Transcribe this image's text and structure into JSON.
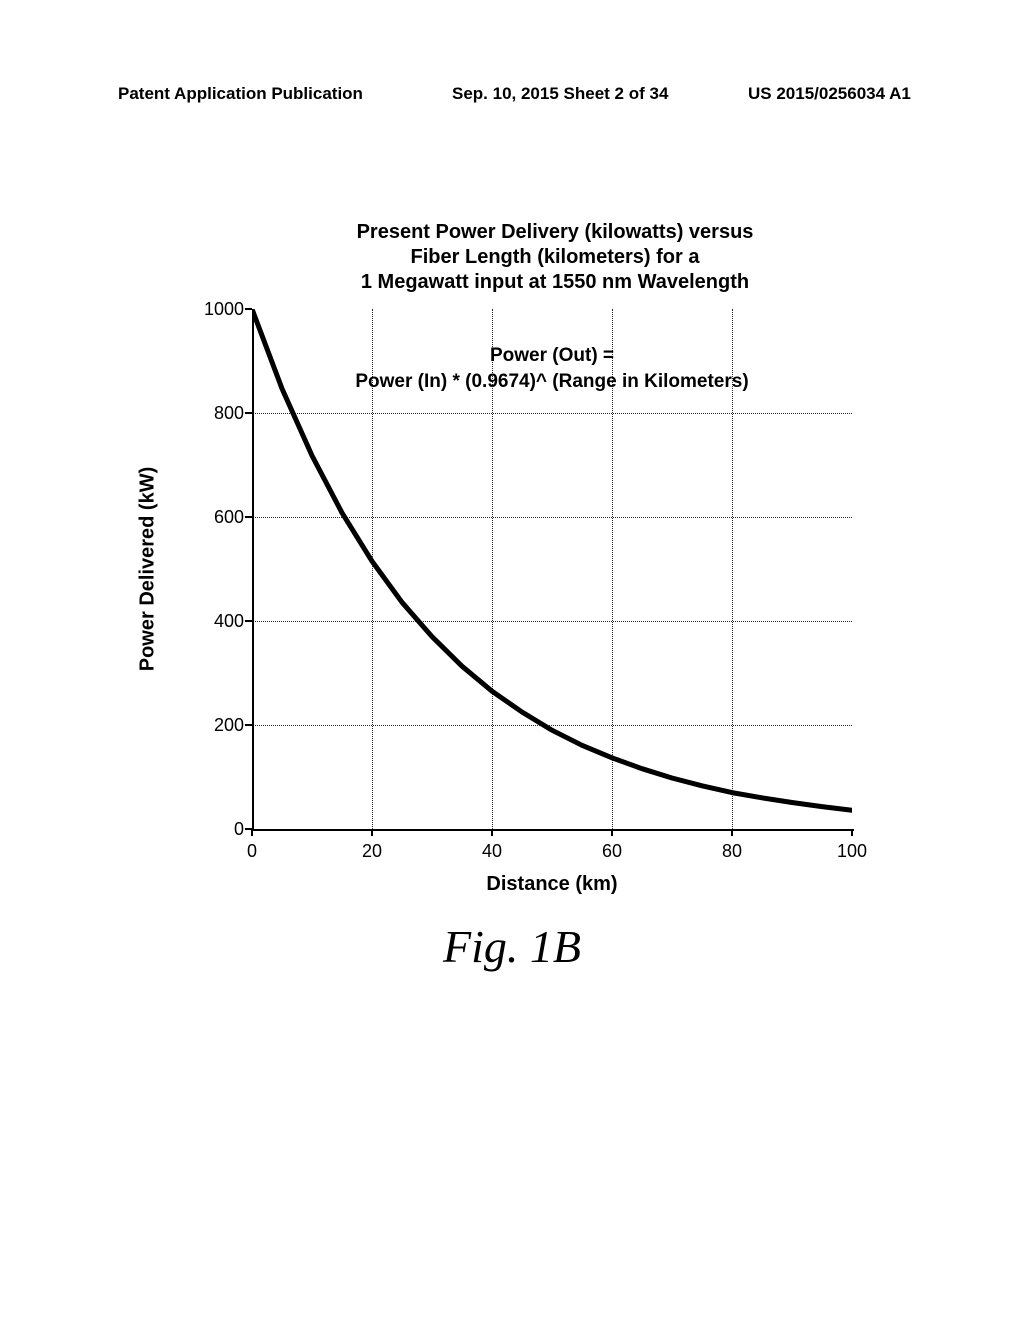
{
  "header": {
    "left": "Patent Application Publication",
    "center": "Sep. 10, 2015  Sheet 2 of 34",
    "right": "US 2015/0256034 A1"
  },
  "chart": {
    "type": "line",
    "title_line1": "Present Power Delivery (kilowatts) versus",
    "title_line2": "Fiber Length  (kilometers) for a",
    "title_line3": "1 Megawatt input at 1550 nm  Wavelength",
    "title_fontsize": 20,
    "xlabel": "Distance (km)",
    "ylabel": "Power Delivered (kW)",
    "label_fontsize": 20,
    "tick_fontsize": 18,
    "xlim": [
      0,
      100
    ],
    "ylim": [
      0,
      1000
    ],
    "xticks": [
      0,
      20,
      40,
      60,
      80,
      100
    ],
    "yticks": [
      0,
      200,
      400,
      600,
      800,
      1000
    ],
    "grid_x_at": [
      20,
      40,
      60,
      80
    ],
    "grid_y_at": [
      200,
      400,
      600,
      800
    ],
    "grid_color": "#000000",
    "grid_style": "dotted",
    "background_color": "#ffffff",
    "curve_color": "#000000",
    "curve_width": 5,
    "annotation_line1": "Power (Out) =",
    "annotation_line2": "Power (In) * (0.9674)^ (Range in Kilometers)",
    "annotation_fontsize": 19,
    "data": {
      "x": [
        0,
        5,
        10,
        15,
        20,
        25,
        30,
        35,
        40,
        45,
        50,
        55,
        60,
        65,
        70,
        75,
        80,
        85,
        90,
        95,
        100
      ],
      "y": [
        1000,
        847,
        718,
        608,
        515,
        436,
        370,
        313,
        265,
        225,
        190,
        161,
        137,
        116,
        98,
        83,
        70,
        60,
        51,
        43,
        36
      ]
    }
  },
  "figure_caption": "Fig. 1B"
}
